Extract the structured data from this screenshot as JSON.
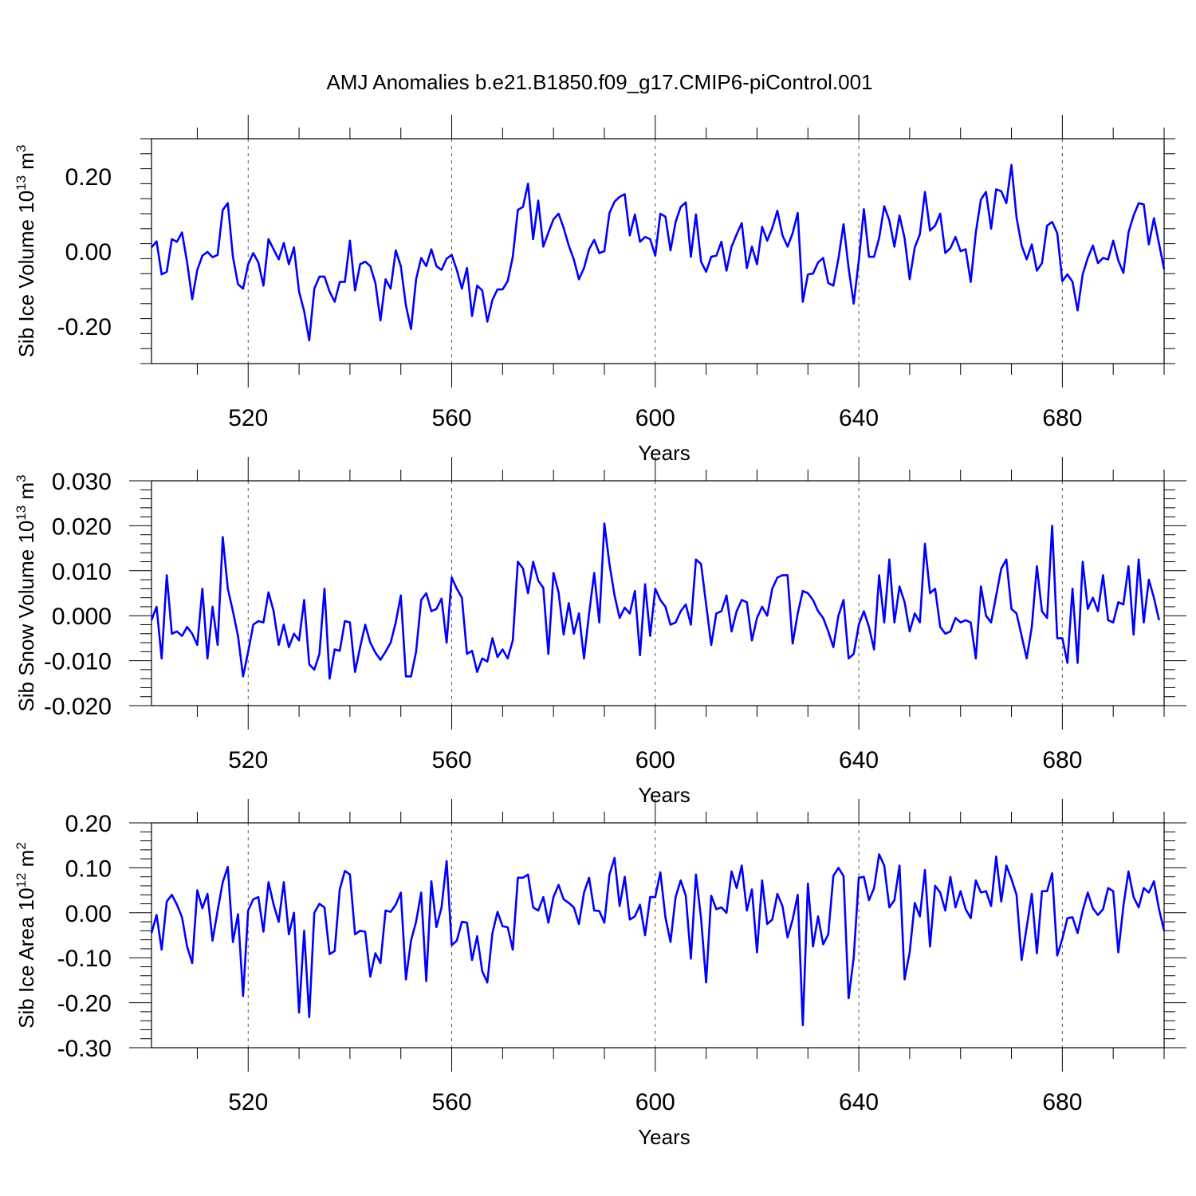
{
  "figure": {
    "title": "AMJ Anomalies b.e21.B1850.f09_g17.CMIP6-piControl.001",
    "line_color": "#0000ff"
  },
  "chart_data": [
    {
      "type": "line",
      "title": "",
      "xlabel": "Years",
      "ylabel": {
        "text": "Sib Ice Volume 10",
        "exp": "13",
        "unit": " m",
        "unit_exp": "3"
      },
      "xlim": [
        501,
        700
      ],
      "ylim": [
        -0.3,
        0.3
      ],
      "xticks": [
        520,
        560,
        600,
        640,
        680
      ],
      "xtick_labels": [
        "520",
        "560",
        "600",
        "640",
        "680"
      ],
      "yticks": [
        -0.2,
        0.0,
        0.2
      ],
      "ytick_labels": [
        "-0.20",
        "0.00",
        "0.20"
      ],
      "grid": "vertical dashed at major x ticks",
      "series": [
        {
          "name": "Sib Ice Volume",
          "x_start": 501,
          "values": [
            0.01,
            0.026,
            -0.062,
            -0.055,
            0.032,
            0.025,
            0.05,
            -0.03,
            -0.128,
            -0.05,
            -0.012,
            -0.002,
            -0.016,
            -0.01,
            0.11,
            0.128,
            -0.015,
            -0.088,
            -0.1,
            -0.035,
            -0.005,
            -0.03,
            -0.092,
            0.032,
            0.005,
            -0.022,
            0.022,
            -0.035,
            0.01,
            -0.108,
            -0.16,
            -0.238,
            -0.1,
            -0.068,
            -0.068,
            -0.108,
            -0.135,
            -0.082,
            -0.082,
            0.028,
            -0.105,
            -0.035,
            -0.028,
            -0.04,
            -0.085,
            -0.185,
            -0.075,
            -0.1,
            0.002,
            -0.04,
            -0.145,
            -0.208,
            -0.075,
            -0.018,
            -0.04,
            0.005,
            -0.04,
            -0.05,
            -0.02,
            -0.01,
            -0.05,
            -0.1,
            -0.045,
            -0.173,
            -0.092,
            -0.105,
            -0.188,
            -0.13,
            -0.102,
            -0.102,
            -0.08,
            -0.015,
            0.11,
            0.118,
            0.18,
            0.032,
            0.135,
            0.012,
            0.05,
            0.085,
            0.1,
            0.062,
            0.015,
            -0.022,
            -0.075,
            -0.045,
            0.005,
            0.03,
            -0.005,
            0.0,
            0.102,
            0.132,
            0.145,
            0.152,
            0.042,
            0.098,
            0.025,
            0.038,
            0.032,
            -0.012,
            0.1,
            0.092,
            0.002,
            0.078,
            0.118,
            0.13,
            -0.015,
            0.098,
            -0.028,
            -0.055,
            -0.015,
            -0.012,
            0.025,
            -0.052,
            0.012,
            0.045,
            0.075,
            -0.045,
            0.012,
            -0.035,
            0.065,
            0.028,
            0.062,
            0.108,
            0.042,
            0.012,
            0.048,
            0.102,
            -0.135,
            -0.062,
            -0.06,
            -0.03,
            -0.018,
            -0.085,
            -0.092,
            -0.02,
            0.072,
            -0.045,
            -0.14,
            -0.025,
            0.112,
            -0.015,
            -0.015,
            0.035,
            0.12,
            0.082,
            0.012,
            0.095,
            0.035,
            -0.075,
            0.01,
            0.045,
            0.158,
            0.055,
            0.068,
            0.1,
            -0.005,
            0.008,
            0.038,
            0.0,
            0.005,
            -0.082,
            0.05,
            0.138,
            0.158,
            0.06,
            0.165,
            0.16,
            0.128,
            0.23,
            0.09,
            0.015,
            -0.022,
            0.018,
            -0.052,
            -0.032,
            0.068,
            0.078,
            0.048,
            -0.08,
            -0.062,
            -0.082,
            -0.158,
            -0.062,
            -0.018,
            0.015,
            -0.032,
            -0.018,
            -0.022,
            0.028,
            -0.025,
            -0.058,
            0.05,
            0.095,
            0.128,
            0.125,
            0.018,
            0.088,
            0.02,
            -0.048
          ]
        }
      ]
    },
    {
      "type": "line",
      "title": "",
      "xlabel": "Years",
      "ylabel": {
        "text": "Sib Snow Volume 10",
        "exp": "13",
        "unit": " m",
        "unit_exp": "3"
      },
      "xlim": [
        501,
        700
      ],
      "ylim": [
        -0.02,
        0.03
      ],
      "xticks": [
        520,
        560,
        600,
        640,
        680
      ],
      "xtick_labels": [
        "520",
        "560",
        "600",
        "640",
        "680"
      ],
      "yticks": [
        -0.02,
        -0.01,
        0.0,
        0.01,
        0.02,
        0.03
      ],
      "ytick_labels": [
        "-0.020",
        "-0.010",
        "0.000",
        "0.010",
        "0.020",
        "0.030"
      ],
      "grid": "vertical dashed at major x ticks",
      "series": [
        {
          "name": "Sib Snow Volume",
          "x_start": 501,
          "values": [
            -0.001,
            0.002,
            -0.0095,
            0.009,
            -0.004,
            -0.0035,
            -0.0045,
            -0.0025,
            -0.004,
            -0.0065,
            0.006,
            -0.0095,
            0.002,
            -0.0065,
            0.0175,
            0.006,
            0.001,
            -0.0045,
            -0.0135,
            -0.008,
            -0.002,
            -0.0012,
            -0.0015,
            0.0052,
            0.001,
            -0.0065,
            -0.002,
            -0.007,
            -0.004,
            -0.0055,
            0.0035,
            -0.0108,
            -0.012,
            -0.0085,
            0.006,
            -0.014,
            -0.0075,
            -0.0078,
            -0.0012,
            -0.0015,
            -0.0125,
            -0.007,
            -0.002,
            -0.006,
            -0.0082,
            -0.0098,
            -0.008,
            -0.006,
            -0.0015,
            0.0045,
            -0.0135,
            -0.0135,
            -0.008,
            0.0035,
            0.005,
            0.001,
            0.0015,
            0.0038,
            -0.006,
            0.0085,
            0.006,
            0.004,
            -0.0085,
            -0.0078,
            -0.0125,
            -0.0095,
            -0.0102,
            -0.005,
            -0.0092,
            -0.0075,
            -0.0095,
            -0.0055,
            0.012,
            0.0105,
            0.005,
            0.012,
            0.0078,
            0.0062,
            -0.0085,
            0.0095,
            0.0052,
            -0.0042,
            0.0028,
            -0.004,
            0.0005,
            -0.0095,
            0.0005,
            0.0095,
            -0.0015,
            0.0205,
            0.0115,
            0.0045,
            -0.0005,
            0.0018,
            0.0005,
            0.0055,
            -0.0088,
            0.007,
            -0.0045,
            0.006,
            0.0035,
            0.002,
            -0.002,
            -0.0015,
            0.001,
            0.0025,
            -0.002,
            0.0125,
            0.0115,
            0.0025,
            -0.0065,
            0.0005,
            0.001,
            0.0045,
            -0.0035,
            0.001,
            0.0035,
            0.003,
            -0.0055,
            -0.0005,
            0.002,
            0.0,
            0.006,
            0.0085,
            0.009,
            0.009,
            -0.0062,
            0.0005,
            0.0055,
            0.005,
            0.0035,
            0.001,
            -0.0005,
            -0.0035,
            -0.007,
            0.0,
            0.0035,
            -0.0095,
            -0.0085,
            -0.002,
            0.001,
            -0.0025,
            -0.0075,
            0.009,
            -0.0015,
            0.0125,
            -0.0015,
            0.0065,
            0.003,
            -0.0035,
            0.0005,
            -0.0015,
            0.016,
            0.005,
            0.006,
            -0.0025,
            -0.004,
            -0.0035,
            -0.0005,
            -0.0015,
            -0.001,
            -0.0015,
            -0.0095,
            0.0065,
            0.0,
            -0.0015,
            0.0045,
            0.0105,
            0.0125,
            0.0015,
            0.0005,
            -0.0045,
            -0.0095,
            -0.0025,
            0.011,
            0.001,
            -0.0005,
            0.02,
            -0.005,
            -0.005,
            -0.0105,
            0.006,
            -0.0105,
            0.012,
            0.0015,
            0.004,
            0.001,
            0.009,
            -0.001,
            -0.0015,
            0.003,
            0.0025,
            0.011,
            -0.0042,
            0.0125,
            -0.0015,
            0.008,
            0.004,
            -0.001
          ]
        }
      ]
    },
    {
      "type": "line",
      "title": "",
      "xlabel": "Years",
      "ylabel": {
        "text": "Sib Ice Area 10",
        "exp": "12",
        "unit": " m",
        "unit_exp": "2"
      },
      "xlim": [
        501,
        700
      ],
      "ylim": [
        -0.3,
        0.2
      ],
      "xticks": [
        520,
        560,
        600,
        640,
        680
      ],
      "xtick_labels": [
        "520",
        "560",
        "600",
        "640",
        "680"
      ],
      "yticks": [
        -0.3,
        -0.2,
        -0.1,
        0.0,
        0.1,
        0.2
      ],
      "ytick_labels": [
        "-0.30",
        "-0.20",
        "-0.10",
        "0.00",
        "0.10",
        "0.20"
      ],
      "grid": "vertical dashed at major x ticks",
      "series": [
        {
          "name": "Sib Ice Area",
          "x_start": 501,
          "values": [
            -0.045,
            -0.005,
            -0.082,
            0.025,
            0.04,
            0.018,
            -0.01,
            -0.075,
            -0.112,
            0.05,
            0.01,
            0.042,
            -0.062,
            0.005,
            0.068,
            0.102,
            -0.065,
            -0.003,
            -0.185,
            0.005,
            0.03,
            0.035,
            -0.042,
            0.068,
            0.018,
            -0.02,
            0.068,
            -0.048,
            0.0,
            -0.222,
            -0.04,
            -0.232,
            0.0,
            0.02,
            0.012,
            -0.092,
            -0.085,
            0.052,
            0.093,
            0.085,
            -0.048,
            -0.04,
            -0.042,
            -0.142,
            -0.09,
            -0.112,
            0.005,
            0.002,
            0.018,
            0.045,
            -0.148,
            -0.062,
            -0.02,
            0.045,
            -0.152,
            0.07,
            -0.032,
            0.012,
            0.115,
            -0.072,
            -0.062,
            -0.02,
            -0.022,
            -0.105,
            -0.052,
            -0.13,
            -0.155,
            -0.045,
            0.002,
            -0.03,
            -0.032,
            -0.082,
            0.078,
            0.078,
            0.085,
            0.012,
            0.005,
            0.035,
            -0.022,
            0.035,
            0.062,
            0.03,
            0.022,
            0.012,
            -0.025,
            0.045,
            0.078,
            0.005,
            0.004,
            -0.022,
            0.085,
            0.122,
            0.015,
            0.08,
            -0.015,
            -0.008,
            0.018,
            -0.05,
            0.035,
            0.035,
            0.09,
            -0.01,
            -0.065,
            0.035,
            0.072,
            0.038,
            -0.102,
            0.085,
            -0.012,
            -0.155,
            0.038,
            0.008,
            0.012,
            0.0,
            0.092,
            0.055,
            0.105,
            0.005,
            0.052,
            -0.088,
            0.072,
            -0.025,
            -0.015,
            0.042,
            0.015,
            -0.055,
            -0.015,
            0.04,
            -0.25,
            0.065,
            -0.075,
            -0.008,
            -0.07,
            -0.048,
            0.082,
            0.1,
            0.082,
            -0.19,
            -0.1,
            0.078,
            0.08,
            0.028,
            0.055,
            0.13,
            0.105,
            0.012,
            0.028,
            0.105,
            -0.148,
            -0.088,
            0.022,
            -0.008,
            0.095,
            -0.075,
            0.06,
            0.045,
            0.005,
            0.08,
            0.012,
            0.048,
            0.008,
            -0.012,
            0.072,
            0.045,
            0.048,
            0.015,
            0.125,
            0.025,
            0.105,
            0.075,
            0.04,
            -0.105,
            -0.032,
            0.042,
            -0.09,
            0.048,
            0.048,
            0.088,
            -0.095,
            -0.058,
            -0.012,
            -0.01,
            -0.045,
            0.005,
            0.045,
            0.01,
            -0.005,
            0.008,
            0.055,
            0.048,
            -0.088,
            0.015,
            0.092,
            0.035,
            0.012,
            0.055,
            0.045,
            0.07,
            0.008,
            -0.04
          ]
        }
      ]
    }
  ]
}
